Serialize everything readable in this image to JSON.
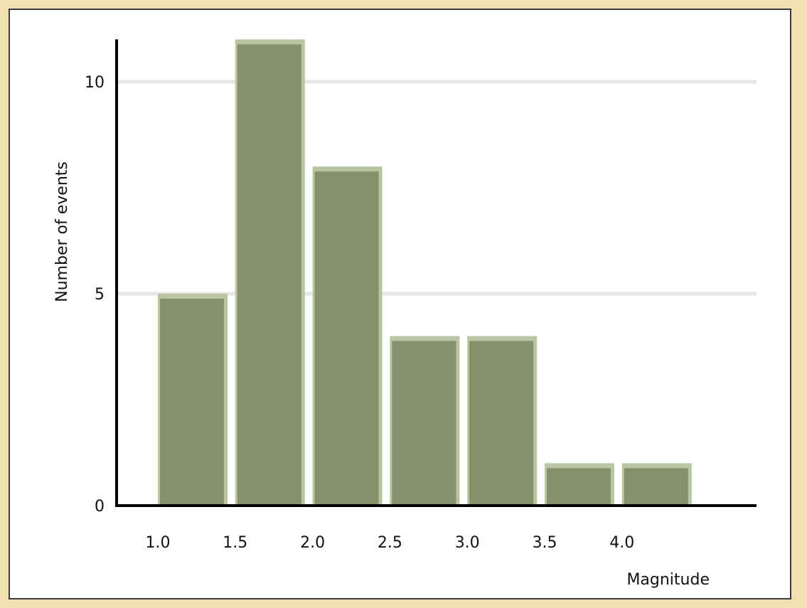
{
  "chart_data": {
    "type": "bar",
    "title": "",
    "xlabel": "Magnitude",
    "ylabel": "Number of events",
    "categories": [
      "1.0",
      "1.5",
      "2.0",
      "2.5",
      "3.0",
      "3.5",
      "4.0"
    ],
    "values": [
      5,
      11,
      8,
      4,
      4,
      1,
      1
    ],
    "ylim": [
      0,
      11
    ],
    "yticks": [
      0,
      5,
      10
    ],
    "grid": true,
    "legend": "none",
    "colors": {
      "bar": "#85916a",
      "bar_highlight": "#b9c4a2",
      "grid": "#e6e6e6",
      "axis": "#000000",
      "background": "#ffffff",
      "border": "#f2e1b0"
    }
  }
}
